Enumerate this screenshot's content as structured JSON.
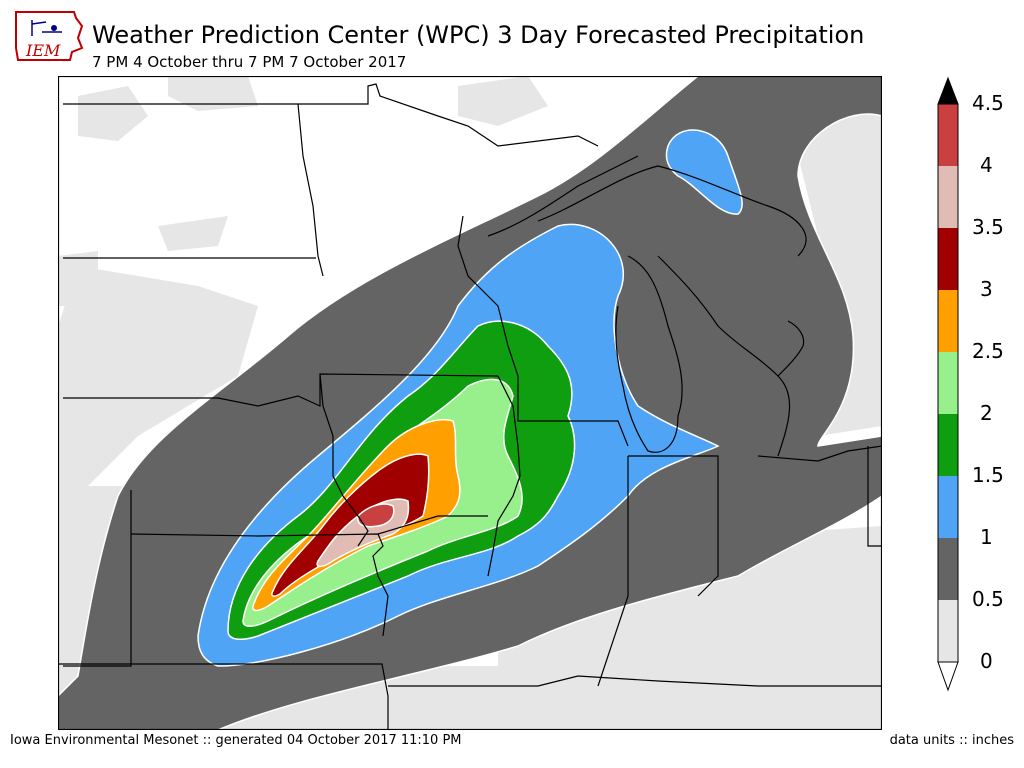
{
  "header": {
    "title": "Weather Prediction Center (WPC) 3 Day Forecasted Precipitation",
    "subtitle": "7 PM 4 October thru 7 PM 7 October 2017"
  },
  "logo": {
    "text": "IEM"
  },
  "colors": {
    "band_0": "#e6e6e6",
    "band_0_5": "#646464",
    "band_1": "#4fa4f5",
    "band_1_5": "#0f9e0f",
    "band_2": "#98f08c",
    "band_2_5": "#ffa000",
    "band_3": "#a00000",
    "band_3_5": "#e0bcb4",
    "band_4": "#c84040",
    "over_max": "#000000"
  },
  "colorbar": {
    "levels": [
      "0",
      "0.5",
      "1",
      "1.5",
      "2",
      "2.5",
      "3",
      "3.5",
      "4",
      "4.5"
    ]
  },
  "footer": {
    "left": "Iowa Environmental Mesonet :: generated 04 October 2017 11:10 PM",
    "right": "data units :: inches"
  }
}
